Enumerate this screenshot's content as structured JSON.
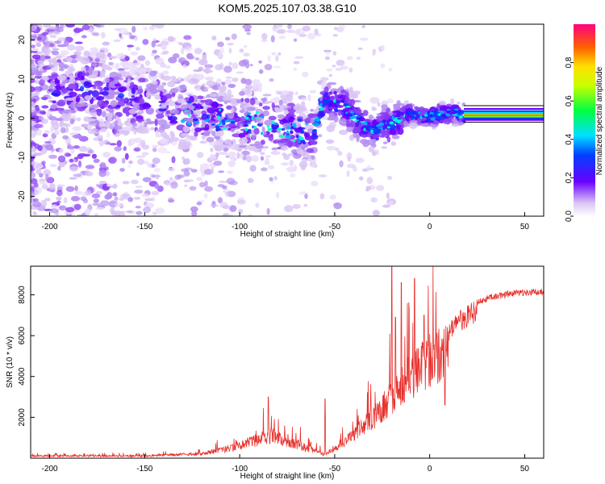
{
  "title": "KOM5.2025.107.03.38.G10",
  "chart_data": [
    {
      "type": "heatmap",
      "xlabel": "Height of straight line (km)",
      "ylabel": "Frequency (Hz)",
      "xlim": [
        -210,
        60
      ],
      "ylim": [
        -25,
        24
      ],
      "xticks": [
        "-200",
        "-150",
        "-100",
        "-50",
        "0",
        "50"
      ],
      "yticks": [
        "-20",
        "-10",
        "0",
        "10",
        "20"
      ],
      "colorbar": {
        "label": "Normalized spectral amplitude",
        "range": [
          0,
          1
        ],
        "ticks": [
          "0.0",
          "0.2",
          "0.4",
          "0.6",
          "0.8"
        ]
      },
      "ridge": [
        {
          "x": -175,
          "y": 7
        },
        {
          "x": -150,
          "y": 4
        },
        {
          "x": -125,
          "y": 1
        },
        {
          "x": -100,
          "y": -1
        },
        {
          "x": -80,
          "y": -2
        },
        {
          "x": -62,
          "y": -4
        },
        {
          "x": -55,
          "y": 5
        },
        {
          "x": -45,
          "y": 3
        },
        {
          "x": -35,
          "y": -2
        },
        {
          "x": -28,
          "y": -3
        },
        {
          "x": -20,
          "y": -1
        },
        {
          "x": -10,
          "y": 1
        },
        {
          "x": 0,
          "y": 0.5
        },
        {
          "x": 10,
          "y": 1.5
        },
        {
          "x": 18,
          "y": 1
        },
        {
          "x": 60,
          "y": 1
        }
      ]
    },
    {
      "type": "line",
      "xlabel": "Height of straight line (km)",
      "ylabel": "SNR (10 * v/v)",
      "xlim": [
        -210,
        60
      ],
      "ylim": [
        0,
        9400
      ],
      "xticks": [
        "-200",
        "-150",
        "-100",
        "-50",
        "0",
        "50"
      ],
      "yticks": [
        "2000",
        "4000",
        "6000",
        "8000"
      ],
      "color": "#e8302c",
      "envelope": [
        {
          "x": -210,
          "y": 150
        },
        {
          "x": -150,
          "y": 150
        },
        {
          "x": -120,
          "y": 300
        },
        {
          "x": -100,
          "y": 800
        },
        {
          "x": -85,
          "y": 1500
        },
        {
          "x": -75,
          "y": 1200
        },
        {
          "x": -65,
          "y": 700
        },
        {
          "x": -55,
          "y": 250
        },
        {
          "x": -48,
          "y": 700
        },
        {
          "x": -40,
          "y": 1500
        },
        {
          "x": -30,
          "y": 2500
        },
        {
          "x": -20,
          "y": 3800
        },
        {
          "x": -10,
          "y": 5000
        },
        {
          "x": -5,
          "y": 5800
        },
        {
          "x": 0,
          "y": 6200
        },
        {
          "x": 5,
          "y": 6400
        },
        {
          "x": 10,
          "y": 6600
        },
        {
          "x": 15,
          "y": 7200
        },
        {
          "x": 25,
          "y": 7800
        },
        {
          "x": 35,
          "y": 8100
        },
        {
          "x": 45,
          "y": 8250
        },
        {
          "x": 60,
          "y": 8300
        }
      ],
      "spikes": [
        {
          "x": -20,
          "y": 9400
        },
        {
          "x": -18,
          "y": 6900
        },
        {
          "x": -15,
          "y": 8600
        },
        {
          "x": -8,
          "y": 8800
        },
        {
          "x": -3,
          "y": 7000
        },
        {
          "x": 8,
          "y": 2600
        },
        {
          "x": -85,
          "y": 3000
        },
        {
          "x": -55,
          "y": 2900
        }
      ]
    }
  ]
}
